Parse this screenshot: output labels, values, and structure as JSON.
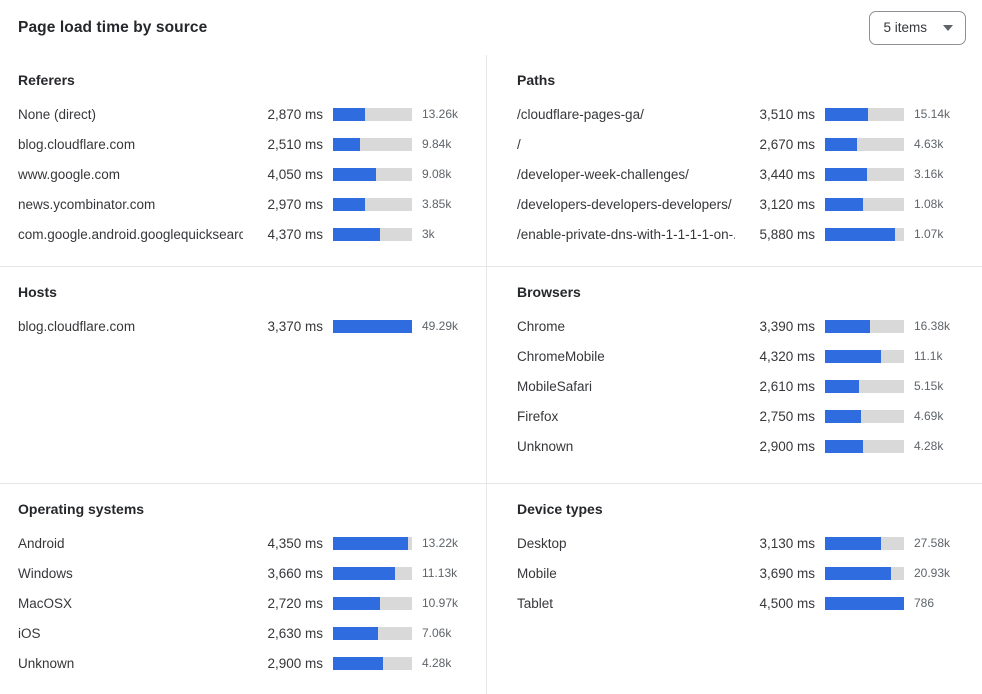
{
  "header": {
    "title": "Page load time by source",
    "items_select": {
      "value": "5 items"
    }
  },
  "colors": {
    "bar_fill": "#2f6ce0",
    "bar_track": "#d9d9d9",
    "divider": "#e5e6e8",
    "count_text": "#5f646a",
    "label_text": "#36373a"
  },
  "panels": [
    {
      "title": "Referers",
      "rows": [
        {
          "label": "None (direct)",
          "ms": "2,870 ms",
          "bar_pct": 40,
          "count": "13.26k"
        },
        {
          "label": "blog.cloudflare.com",
          "ms": "2,510 ms",
          "bar_pct": 34,
          "count": "9.84k"
        },
        {
          "label": "www.google.com",
          "ms": "4,050 ms",
          "bar_pct": 54,
          "count": "9.08k"
        },
        {
          "label": "news.ycombinator.com",
          "ms": "2,970 ms",
          "bar_pct": 40,
          "count": "3.85k"
        },
        {
          "label": "com.google.android.googlequicksearc...",
          "ms": "4,370 ms",
          "bar_pct": 59,
          "count": "3k"
        }
      ]
    },
    {
      "title": "Paths",
      "rows": [
        {
          "label": "/cloudflare-pages-ga/",
          "ms": "3,510 ms",
          "bar_pct": 55,
          "count": "15.14k"
        },
        {
          "label": "/",
          "ms": "2,670 ms",
          "bar_pct": 41,
          "count": "4.63k"
        },
        {
          "label": "/developer-week-challenges/",
          "ms": "3,440 ms",
          "bar_pct": 53,
          "count": "3.16k"
        },
        {
          "label": "/developers-developers-developers/",
          "ms": "3,120 ms",
          "bar_pct": 48,
          "count": "1.08k"
        },
        {
          "label": "/enable-private-dns-with-1-1-1-1-on-...",
          "ms": "5,880 ms",
          "bar_pct": 89,
          "count": "1.07k"
        }
      ]
    },
    {
      "title": "Hosts",
      "rows": [
        {
          "label": "blog.cloudflare.com",
          "ms": "3,370 ms",
          "bar_pct": 100,
          "count": "49.29k"
        }
      ]
    },
    {
      "title": "Browsers",
      "rows": [
        {
          "label": "Chrome",
          "ms": "3,390 ms",
          "bar_pct": 57,
          "count": "16.38k"
        },
        {
          "label": "ChromeMobile",
          "ms": "4,320 ms",
          "bar_pct": 71,
          "count": "11.1k"
        },
        {
          "label": "MobileSafari",
          "ms": "2,610 ms",
          "bar_pct": 43,
          "count": "5.15k"
        },
        {
          "label": "Firefox",
          "ms": "2,750 ms",
          "bar_pct": 45,
          "count": "4.69k"
        },
        {
          "label": "Unknown",
          "ms": "2,900 ms",
          "bar_pct": 48,
          "count": "4.28k"
        }
      ]
    },
    {
      "title": "Operating systems",
      "rows": [
        {
          "label": "Android",
          "ms": "4,350 ms",
          "bar_pct": 95,
          "count": "13.22k"
        },
        {
          "label": "Windows",
          "ms": "3,660 ms",
          "bar_pct": 79,
          "count": "11.13k"
        },
        {
          "label": "MacOSX",
          "ms": "2,720 ms",
          "bar_pct": 59,
          "count": "10.97k"
        },
        {
          "label": "iOS",
          "ms": "2,630 ms",
          "bar_pct": 57,
          "count": "7.06k"
        },
        {
          "label": "Unknown",
          "ms": "2,900 ms",
          "bar_pct": 63,
          "count": "4.28k"
        }
      ]
    },
    {
      "title": "Device types",
      "rows": [
        {
          "label": "Desktop",
          "ms": "3,130 ms",
          "bar_pct": 71,
          "count": "27.58k"
        },
        {
          "label": "Mobile",
          "ms": "3,690 ms",
          "bar_pct": 83,
          "count": "20.93k"
        },
        {
          "label": "Tablet",
          "ms": "4,500 ms",
          "bar_pct": 100,
          "count": "786"
        }
      ]
    }
  ]
}
